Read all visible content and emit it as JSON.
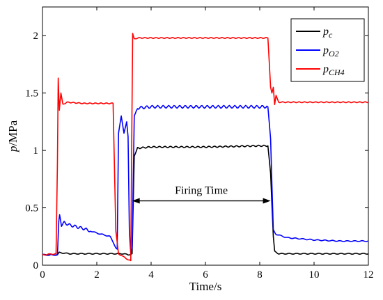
{
  "chart_data": {
    "type": "line",
    "xlabel": "Time/s",
    "ylabel": {
      "main": "p",
      "unit": "/MPa"
    },
    "xlim": [
      0,
      12
    ],
    "ylim": [
      0,
      2.25
    ],
    "xticks": [
      "0",
      "2",
      "4",
      "6",
      "8",
      "10",
      "12"
    ],
    "yticks": [
      "0",
      "0.5",
      "1",
      "1.5",
      "2"
    ],
    "xtick_values": [
      0,
      2,
      4,
      6,
      8,
      10,
      12
    ],
    "ytick_values": [
      0,
      0.5,
      1,
      1.5,
      2
    ],
    "grid": false,
    "legend_position": "top-right",
    "series": [
      {
        "name": {
          "base": "p",
          "sub": "c"
        },
        "color": "#000000",
        "x": [
          0,
          0.55,
          0.62,
          1.0,
          2.0,
          3.0,
          3.15,
          3.3,
          3.38,
          3.5,
          4.0,
          6.0,
          8.0,
          8.3,
          8.4,
          8.5,
          8.55,
          8.7,
          9.0,
          10.0,
          11.0,
          12.0
        ],
        "y": [
          0.09,
          0.09,
          0.11,
          0.1,
          0.1,
          0.1,
          0.09,
          0.1,
          0.95,
          1.02,
          1.03,
          1.03,
          1.04,
          1.04,
          0.8,
          0.25,
          0.12,
          0.1,
          0.1,
          0.1,
          0.1,
          0.1
        ]
      },
      {
        "name": {
          "base": "p",
          "sub": "O2"
        },
        "color": "#0000ff",
        "x": [
          0,
          0.55,
          0.6,
          0.63,
          0.7,
          0.8,
          1.0,
          1.5,
          2.0,
          2.5,
          2.7,
          2.75,
          2.8,
          2.9,
          3.0,
          3.1,
          3.15,
          3.2,
          3.25,
          3.3,
          3.38,
          3.5,
          4.0,
          6.0,
          8.0,
          8.3,
          8.4,
          8.5,
          8.6,
          9.0,
          10.0,
          11.0,
          12.0
        ],
        "y": [
          0.09,
          0.09,
          0.38,
          0.44,
          0.35,
          0.37,
          0.35,
          0.32,
          0.28,
          0.25,
          0.15,
          0.14,
          1.15,
          1.3,
          1.15,
          1.25,
          1.12,
          0.3,
          0.1,
          0.15,
          1.3,
          1.37,
          1.38,
          1.38,
          1.38,
          1.38,
          1.1,
          0.3,
          0.27,
          0.24,
          0.22,
          0.21,
          0.21
        ]
      },
      {
        "name": {
          "base": "p",
          "sub": "CH4"
        },
        "color": "#ff0000",
        "x": [
          0,
          0.5,
          0.55,
          0.58,
          0.62,
          0.68,
          0.75,
          0.9,
          1.5,
          2.0,
          2.5,
          2.6,
          2.7,
          2.8,
          3.0,
          3.15,
          3.25,
          3.32,
          3.38,
          3.5,
          4.0,
          6.0,
          8.0,
          8.3,
          8.4,
          8.45,
          8.5,
          8.55,
          8.6,
          8.7,
          9.0,
          10.0,
          11.0,
          12.0
        ],
        "y": [
          0.09,
          0.1,
          0.9,
          1.63,
          1.35,
          1.5,
          1.4,
          1.42,
          1.41,
          1.41,
          1.41,
          1.41,
          0.3,
          0.1,
          0.07,
          0.05,
          0.04,
          2.02,
          1.97,
          1.98,
          1.98,
          1.98,
          1.98,
          1.98,
          1.55,
          1.5,
          1.55,
          1.4,
          1.48,
          1.42,
          1.42,
          1.42,
          1.42,
          1.42
        ]
      }
    ],
    "annotations": [
      {
        "text": "Firing Time",
        "x_start": 3.3,
        "x_end": 8.4,
        "y": 0.5,
        "type": "double-arrow"
      }
    ]
  }
}
